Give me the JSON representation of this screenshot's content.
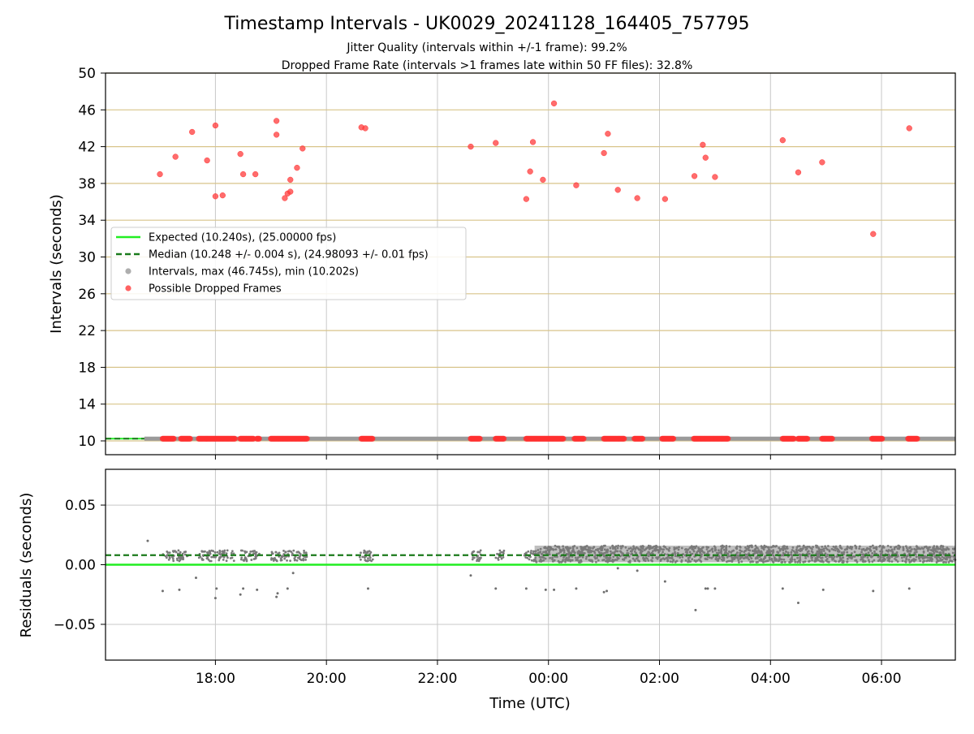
{
  "chart_data": [
    {
      "type": "scatter",
      "panel": "intervals",
      "title": "Timestamp Intervals - UK0029_20241128_164405_757795",
      "subtitle_1": "Jitter Quality (intervals within +/-1 frame): 99.2%",
      "subtitle_2": "Dropped Frame Rate (intervals >1 frames late within 50 FF files): 32.8%",
      "xlabel": "",
      "ylabel": "Intervals (seconds)",
      "xlim_hours": [
        16.02,
        31.33
      ],
      "ylim": [
        8.5,
        50
      ],
      "yticks": [
        10,
        14,
        18,
        22,
        26,
        30,
        34,
        38,
        42,
        46,
        50
      ],
      "xticks": [
        {
          "hour": 18,
          "label": "18:00"
        },
        {
          "hour": 20,
          "label": "20:00"
        },
        {
          "hour": 22,
          "label": "22:00"
        },
        {
          "hour": 24,
          "label": "00:00"
        },
        {
          "hour": 26,
          "label": "02:00"
        },
        {
          "hour": 28,
          "label": "04:00"
        },
        {
          "hour": 30,
          "label": "06:00"
        }
      ],
      "grid": "on",
      "legend_placement": "center-left",
      "legend": [
        {
          "label": "Expected (10.240s), (25.00000 fps)",
          "kind": "line-solid",
          "color": "#22ee22"
        },
        {
          "label": "Median (10.248 +/- 0.004 s), (24.98093 +/- 0.01 fps)",
          "kind": "line-dashed",
          "color": "#1a7a1a"
        },
        {
          "label": "Intervals, max (46.745s), min (10.202s)",
          "kind": "marker",
          "color": "#9a9a9a"
        },
        {
          "label": "Possible Dropped Frames",
          "kind": "marker",
          "color": "#ff3b3b"
        }
      ],
      "expected_interval": 10.24,
      "median_interval": 10.248,
      "intervals_range": [
        16.72,
        31.33
      ],
      "dropped_frames": [
        [
          17.0,
          39.0
        ],
        [
          17.28,
          40.9
        ],
        [
          17.58,
          43.6
        ],
        [
          17.85,
          40.5
        ],
        [
          18.0,
          44.3
        ],
        [
          18.0,
          36.6
        ],
        [
          18.13,
          36.7
        ],
        [
          18.45,
          41.2
        ],
        [
          18.5,
          39.0
        ],
        [
          18.72,
          39.0
        ],
        [
          19.1,
          44.8
        ],
        [
          19.1,
          43.3
        ],
        [
          19.25,
          36.4
        ],
        [
          19.3,
          36.9
        ],
        [
          19.35,
          37.1
        ],
        [
          19.35,
          38.4
        ],
        [
          19.47,
          39.7
        ],
        [
          19.57,
          41.8
        ],
        [
          20.63,
          44.1
        ],
        [
          20.7,
          44.0
        ],
        [
          22.6,
          42.0
        ],
        [
          23.05,
          42.4
        ],
        [
          23.6,
          36.3
        ],
        [
          23.67,
          39.3
        ],
        [
          23.72,
          42.5
        ],
        [
          23.9,
          38.4
        ],
        [
          24.1,
          46.7
        ],
        [
          24.5,
          37.8
        ],
        [
          25.0,
          41.3
        ],
        [
          25.07,
          43.4
        ],
        [
          25.25,
          37.3
        ],
        [
          25.6,
          36.4
        ],
        [
          26.1,
          36.3
        ],
        [
          26.63,
          38.8
        ],
        [
          26.78,
          42.2
        ],
        [
          26.83,
          40.8
        ],
        [
          27.0,
          38.7
        ],
        [
          28.22,
          42.7
        ],
        [
          28.5,
          39.2
        ],
        [
          28.93,
          40.3
        ],
        [
          29.85,
          32.5
        ],
        [
          30.5,
          44.0
        ]
      ],
      "dropped_frames_baseline": [
        [
          17.05,
          17.25
        ],
        [
          17.38,
          17.55
        ],
        [
          17.7,
          18.35
        ],
        [
          18.45,
          18.7
        ],
        [
          18.75,
          18.8
        ],
        [
          19.0,
          19.65
        ],
        [
          20.63,
          20.83
        ],
        [
          22.6,
          22.78
        ],
        [
          23.05,
          23.2
        ],
        [
          23.6,
          24.27
        ],
        [
          24.47,
          24.65
        ],
        [
          25.0,
          25.37
        ],
        [
          25.55,
          25.7
        ],
        [
          26.05,
          26.25
        ],
        [
          26.62,
          27.25
        ],
        [
          28.22,
          28.42
        ],
        [
          28.5,
          28.68
        ],
        [
          28.93,
          29.12
        ],
        [
          29.83,
          30.02
        ],
        [
          30.48,
          30.65
        ]
      ]
    },
    {
      "type": "scatter",
      "panel": "residuals",
      "xlabel": "Time (UTC)",
      "ylabel": "Residuals (seconds)",
      "ylim": [
        -0.08,
        0.08
      ],
      "yticks": [
        {
          "value": 0.05,
          "label": "0.05"
        },
        {
          "value": 0.0,
          "label": "0.00"
        },
        {
          "value": -0.05,
          "label": "−0.05"
        }
      ],
      "grid": "on",
      "expected_residual": 0.0,
      "median_residual": 0.008,
      "dense_region_hours": [
        23.75,
        31.33
      ],
      "dense_band": [
        0.002,
        0.016
      ],
      "sparse_clusters": [
        [
          17.05,
          17.5
        ],
        [
          17.7,
          18.35
        ],
        [
          18.45,
          18.8
        ],
        [
          19.0,
          19.65
        ],
        [
          20.6,
          20.85
        ],
        [
          22.6,
          22.8
        ],
        [
          23.05,
          23.2
        ],
        [
          23.55,
          23.75
        ]
      ],
      "outliers": [
        [
          16.78,
          0.02
        ],
        [
          17.05,
          -0.022
        ],
        [
          17.35,
          -0.021
        ],
        [
          17.65,
          -0.011
        ],
        [
          18.0,
          -0.028
        ],
        [
          18.02,
          -0.02
        ],
        [
          18.45,
          -0.025
        ],
        [
          18.5,
          -0.02
        ],
        [
          18.75,
          -0.021
        ],
        [
          19.1,
          -0.027
        ],
        [
          19.12,
          -0.024
        ],
        [
          19.3,
          -0.02
        ],
        [
          19.4,
          -0.007
        ],
        [
          20.75,
          -0.02
        ],
        [
          22.6,
          -0.009
        ],
        [
          23.05,
          -0.02
        ],
        [
          23.6,
          -0.02
        ],
        [
          23.95,
          -0.021
        ],
        [
          24.1,
          -0.021
        ],
        [
          24.5,
          -0.02
        ],
        [
          25.0,
          -0.023
        ],
        [
          25.05,
          -0.022
        ],
        [
          25.25,
          -0.003
        ],
        [
          25.6,
          -0.005
        ],
        [
          26.1,
          -0.014
        ],
        [
          26.65,
          -0.038
        ],
        [
          26.83,
          -0.02
        ],
        [
          26.87,
          -0.02
        ],
        [
          27.0,
          -0.02
        ],
        [
          28.22,
          -0.02
        ],
        [
          28.5,
          -0.032
        ],
        [
          28.95,
          -0.021
        ],
        [
          29.85,
          -0.022
        ],
        [
          30.5,
          -0.02
        ]
      ]
    }
  ]
}
